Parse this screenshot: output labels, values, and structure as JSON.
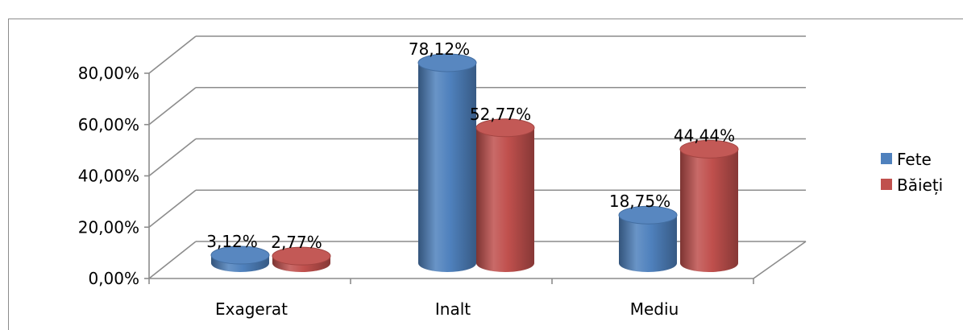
{
  "chart_data": {
    "type": "bar",
    "style": "3d-cylinder",
    "categories": [
      "Exagerat",
      "Inalt",
      "Mediu"
    ],
    "series": [
      {
        "name": "Fete",
        "color": "#4f81bd",
        "values": [
          3.12,
          78.12,
          18.75
        ],
        "labels": [
          "3,12%",
          "78,12%",
          "18,75%"
        ]
      },
      {
        "name": "Băieți",
        "color": "#c0504d",
        "values": [
          2.77,
          52.77,
          44.44
        ],
        "labels": [
          "2,77%",
          "52,77%",
          "44,44%"
        ]
      }
    ],
    "yticks": [
      "0,00%",
      "20,00%",
      "40,00%",
      "60,00%",
      "80,00%"
    ],
    "ylim": [
      0,
      80
    ],
    "grid": true,
    "legend_position": "right",
    "title": "",
    "xlabel": "",
    "ylabel": ""
  }
}
